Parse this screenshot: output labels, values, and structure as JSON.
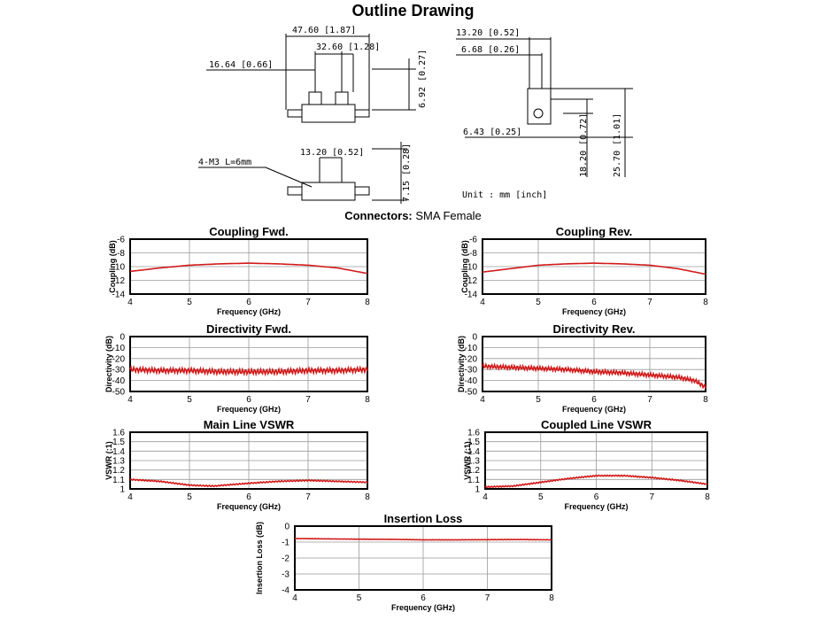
{
  "page": {
    "title": "Outline Drawing",
    "connectors_label": "Connectors:",
    "connectors_value": "SMA Female"
  },
  "drawing": {
    "dims": {
      "d1": "47.60  [1.87]",
      "d2": "32.60  [1.28]",
      "d3": "16.64  [0.66]",
      "d4": "6.92  [0.27]",
      "d5": "13.20  [0.52]",
      "d6": "4-M3  L=6mm",
      "d7": "7.15  [0.28]",
      "d8": "13.20  [0.52]",
      "d9": "6.68  [0.26]",
      "d10": "6.43  [0.25]",
      "d11": "18.20  [0.72]",
      "d12": "25.70  [1.01]"
    },
    "unit": "Unit : mm [inch]"
  },
  "chart_data": [
    {
      "type": "line",
      "title": "Coupling Fwd.",
      "xlabel": "Frequency (GHz)",
      "ylabel": "Coupling (dB)",
      "xlim": [
        4,
        8
      ],
      "ylim": [
        -14,
        -6
      ],
      "xticks": [
        4,
        5,
        6,
        7,
        8
      ],
      "yticks": [
        -6,
        -8,
        -10,
        -12,
        -14
      ],
      "grid": true,
      "series": [
        {
          "color": "#d11a1a",
          "ripple": 0,
          "x": [
            4,
            4.5,
            5,
            5.5,
            6,
            6.5,
            7,
            7.5,
            8
          ],
          "y": [
            -10.7,
            -10.2,
            -9.8,
            -9.6,
            -9.5,
            -9.6,
            -9.8,
            -10.2,
            -11.0
          ]
        }
      ]
    },
    {
      "type": "line",
      "title": "Coupling Rev.",
      "xlabel": "Frequency (GHz)",
      "ylabel": "Coupling (dB)",
      "xlim": [
        4,
        8
      ],
      "ylim": [
        -14,
        -6
      ],
      "xticks": [
        4,
        5,
        6,
        7,
        8
      ],
      "yticks": [
        -6,
        -8,
        -10,
        -12,
        -14
      ],
      "grid": true,
      "series": [
        {
          "color": "#d11a1a",
          "ripple": 0,
          "x": [
            4,
            4.5,
            5,
            5.5,
            6,
            6.5,
            7,
            7.5,
            8
          ],
          "y": [
            -10.8,
            -10.3,
            -9.8,
            -9.6,
            -9.5,
            -9.6,
            -9.8,
            -10.3,
            -11.1
          ]
        }
      ]
    },
    {
      "type": "line",
      "title": "Directivity Fwd.",
      "xlabel": "Frequency (GHz)",
      "ylabel": "Directivity (dB)",
      "xlim": [
        4,
        8
      ],
      "ylim": [
        -50,
        0
      ],
      "xticks": [
        4,
        5,
        6,
        7,
        8
      ],
      "yticks": [
        0,
        -10,
        -20,
        -30,
        -40,
        -50
      ],
      "grid": true,
      "series": [
        {
          "color": "#d11a1a",
          "ripple": 2.2,
          "x": [
            4,
            4.5,
            5,
            5.5,
            6,
            6.5,
            7,
            7.5,
            8
          ],
          "y": [
            -30,
            -31,
            -31,
            -32,
            -32,
            -32,
            -31,
            -31,
            -30
          ]
        }
      ]
    },
    {
      "type": "line",
      "title": "Directivity Rev.",
      "xlabel": "Frequency (GHz)",
      "ylabel": "Directivity (dB)",
      "xlim": [
        4,
        8
      ],
      "ylim": [
        -50,
        0
      ],
      "xticks": [
        4,
        5,
        6,
        7,
        8
      ],
      "yticks": [
        0,
        -10,
        -20,
        -30,
        -40,
        -50
      ],
      "grid": true,
      "series": [
        {
          "color": "#d11a1a",
          "ripple": 1.8,
          "x": [
            4,
            4.5,
            5,
            5.5,
            6,
            6.5,
            7,
            7.5,
            7.8,
            8
          ],
          "y": [
            -27,
            -28,
            -29,
            -30,
            -32,
            -33,
            -35,
            -37,
            -40,
            -46
          ]
        }
      ]
    },
    {
      "type": "line",
      "title": "Main Line VSWR",
      "xlabel": "Frequency (GHz)",
      "ylabel": "VSWR (:1)",
      "xlim": [
        4,
        8
      ],
      "ylim": [
        1,
        1.6
      ],
      "xticks": [
        4,
        5,
        6,
        7,
        8
      ],
      "yticks": [
        1.6,
        1.5,
        1.4,
        1.3,
        1.2,
        1.1,
        1
      ],
      "grid": true,
      "series": [
        {
          "color": "#d11a1a",
          "ripple": 0.006,
          "x": [
            4,
            4.5,
            5,
            5.4,
            6,
            6.5,
            7,
            7.5,
            8
          ],
          "y": [
            1.1,
            1.08,
            1.04,
            1.03,
            1.06,
            1.08,
            1.09,
            1.08,
            1.07
          ]
        }
      ]
    },
    {
      "type": "line",
      "title": "Coupled Line VSWR",
      "xlabel": "Frequency (GHz)",
      "ylabel": "VSWR (:1)",
      "xlim": [
        4,
        8
      ],
      "ylim": [
        1,
        1.6
      ],
      "xticks": [
        4,
        5,
        6,
        7,
        8
      ],
      "yticks": [
        1.6,
        1.5,
        1.4,
        1.3,
        1.2,
        1.1,
        1
      ],
      "grid": true,
      "series": [
        {
          "color": "#d11a1a",
          "ripple": 0.006,
          "x": [
            4,
            4.5,
            5,
            5.5,
            6,
            6.5,
            7,
            7.5,
            8
          ],
          "y": [
            1.02,
            1.03,
            1.07,
            1.11,
            1.14,
            1.14,
            1.12,
            1.09,
            1.05
          ]
        }
      ]
    },
    {
      "type": "line",
      "title": "Insertion Loss",
      "xlabel": "Frequency (GHz)",
      "ylabel": "Insertion Loss (dB)",
      "xlim": [
        4,
        8
      ],
      "ylim": [
        -4,
        0
      ],
      "xticks": [
        4,
        5,
        6,
        7,
        8
      ],
      "yticks": [
        0,
        -1,
        -2,
        -3,
        -4
      ],
      "grid": true,
      "series": [
        {
          "color": "#d11a1a",
          "ripple": 0.01,
          "x": [
            4,
            4.5,
            5,
            5.5,
            6,
            6.5,
            7,
            7.5,
            8
          ],
          "y": [
            -0.78,
            -0.8,
            -0.82,
            -0.83,
            -0.86,
            -0.86,
            -0.85,
            -0.84,
            -0.86
          ]
        }
      ]
    }
  ]
}
